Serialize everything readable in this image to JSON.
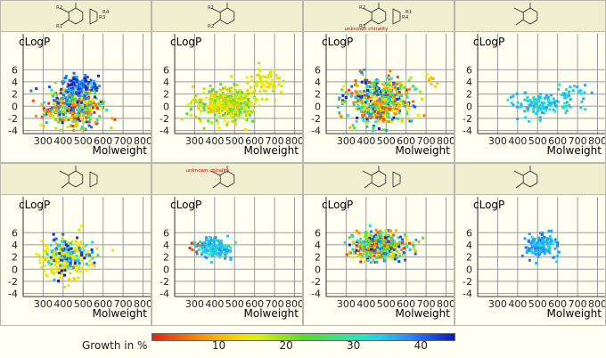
{
  "chart_data": [
    {
      "type": "scatter",
      "xlabel": "Molweight",
      "ylabel": "cLogP",
      "xlim": [
        200,
        820
      ],
      "ylim": [
        -4.5,
        7.5
      ],
      "x_ticks": [
        300,
        400,
        500,
        600,
        700,
        800
      ],
      "y_ticks": [
        -4,
        -2,
        0,
        2,
        4,
        6
      ],
      "structure_labels": [
        "R2",
        "R1",
        "R3",
        "R4"
      ],
      "color_range": [
        0,
        45
      ],
      "clusters": [
        {
          "cx": 450,
          "cy": 0,
          "sx": 70,
          "sy": 1.8,
          "n": 420,
          "cmin": 0,
          "cmax": 45
        },
        {
          "cx": 480,
          "cy": 3.5,
          "sx": 40,
          "sy": 1.0,
          "n": 120,
          "cmin": 35,
          "cmax": 45
        }
      ]
    },
    {
      "type": "scatter",
      "xlabel": "Molweight",
      "ylabel": "cLogP",
      "xlim": [
        200,
        820
      ],
      "ylim": [
        -4.5,
        7.5
      ],
      "x_ticks": [
        300,
        400,
        500,
        600,
        700,
        800
      ],
      "y_ticks": [
        -4,
        -2,
        0,
        2,
        4,
        6
      ],
      "structure_labels": [
        "R1",
        "R2"
      ],
      "color_range": [
        0,
        45
      ],
      "clusters": [
        {
          "cx": 450,
          "cy": 0.3,
          "sx": 75,
          "sy": 1.4,
          "n": 330,
          "cmin": 10,
          "cmax": 25
        },
        {
          "cx": 650,
          "cy": 3.8,
          "sx": 50,
          "sy": 1.2,
          "n": 70,
          "cmin": 12,
          "cmax": 18
        }
      ]
    },
    {
      "type": "scatter",
      "xlabel": "Molweight",
      "ylabel": "cLogP",
      "xlim": [
        200,
        820
      ],
      "ylim": [
        -4.5,
        7.5
      ],
      "x_ticks": [
        300,
        400,
        500,
        600,
        700,
        800
      ],
      "y_ticks": [
        -4,
        -2,
        0,
        2,
        4,
        6
      ],
      "structure_labels": [
        "R2",
        "R3",
        "R4",
        "R1",
        "unknown chirality"
      ],
      "color_range": [
        0,
        45
      ],
      "clusters": [
        {
          "cx": 470,
          "cy": 1.0,
          "sx": 80,
          "sy": 1.9,
          "n": 520,
          "cmin": 0,
          "cmax": 45
        },
        {
          "cx": 720,
          "cy": 4.0,
          "sx": 25,
          "sy": 0.8,
          "n": 8,
          "cmin": 8,
          "cmax": 14
        }
      ]
    },
    {
      "type": "scatter",
      "xlabel": "Molweight",
      "ylabel": "cLogP",
      "xlim": [
        200,
        820
      ],
      "ylim": [
        -4.5,
        7.5
      ],
      "x_ticks": [
        300,
        400,
        500,
        600,
        700,
        800
      ],
      "y_ticks": [
        -4,
        -2,
        0,
        2,
        4,
        6
      ],
      "structure_labels": [],
      "color_range": [
        0,
        45
      ],
      "clusters": [
        {
          "cx": 520,
          "cy": 0.3,
          "sx": 80,
          "sy": 1.0,
          "n": 120,
          "cmin": 31,
          "cmax": 37
        },
        {
          "cx": 680,
          "cy": 2.5,
          "sx": 40,
          "sy": 0.8,
          "n": 25,
          "cmin": 31,
          "cmax": 37
        }
      ]
    },
    {
      "type": "scatter",
      "xlabel": "Molweight",
      "ylabel": "cLogP",
      "xlim": [
        200,
        820
      ],
      "ylim": [
        -4.5,
        7.5
      ],
      "x_ticks": [
        300,
        400,
        500,
        600,
        700,
        800
      ],
      "y_ticks": [
        -4,
        -2,
        0,
        2,
        4,
        6
      ],
      "structure_labels": [],
      "color_range": [
        0,
        45
      ],
      "clusters": [
        {
          "cx": 420,
          "cy": 1.8,
          "sx": 60,
          "sy": 1.6,
          "n": 230,
          "cmin": 12,
          "cmax": 16
        },
        {
          "cx": 430,
          "cy": 2.2,
          "sx": 60,
          "sy": 1.6,
          "n": 90,
          "cmin": 30,
          "cmax": 45
        }
      ]
    },
    {
      "type": "scatter",
      "xlabel": "Molweight",
      "ylabel": "cLogP",
      "xlim": [
        200,
        820
      ],
      "ylim": [
        -4.5,
        7.5
      ],
      "x_ticks": [
        300,
        400,
        500,
        600,
        700,
        800
      ],
      "y_ticks": [
        -4,
        -2,
        0,
        2,
        4,
        6
      ],
      "structure_labels": [
        "unknown chirality"
      ],
      "color_range": [
        0,
        45
      ],
      "clusters": [
        {
          "cx": 400,
          "cy": 3.5,
          "sx": 45,
          "sy": 0.8,
          "n": 150,
          "cmin": 31,
          "cmax": 38
        },
        {
          "cx": 310,
          "cy": 3.6,
          "sx": 15,
          "sy": 0.4,
          "n": 6,
          "cmin": 0,
          "cmax": 8
        }
      ]
    },
    {
      "type": "scatter",
      "xlabel": "Molweight",
      "ylabel": "cLogP",
      "xlim": [
        200,
        820
      ],
      "ylim": [
        -4.5,
        7.5
      ],
      "x_ticks": [
        300,
        400,
        500,
        600,
        700,
        800
      ],
      "y_ticks": [
        -4,
        -2,
        0,
        2,
        4,
        6
      ],
      "structure_labels": [],
      "color_range": [
        0,
        45
      ],
      "clusters": [
        {
          "cx": 470,
          "cy": 3.8,
          "sx": 65,
          "sy": 1.1,
          "n": 480,
          "cmin": 0,
          "cmax": 45
        }
      ]
    },
    {
      "type": "scatter",
      "xlabel": "Molweight",
      "ylabel": "cLogP",
      "xlim": [
        200,
        820
      ],
      "ylim": [
        -4.5,
        7.5
      ],
      "x_ticks": [
        300,
        400,
        500,
        600,
        700,
        800
      ],
      "y_ticks": [
        -4,
        -2,
        0,
        2,
        4,
        6
      ],
      "structure_labels": [],
      "color_range": [
        0,
        45
      ],
      "clusters": [
        {
          "cx": 510,
          "cy": 3.8,
          "sx": 40,
          "sy": 1.0,
          "n": 150,
          "cmin": 32,
          "cmax": 40
        }
      ]
    }
  ],
  "legend": {
    "title": "Growth in %",
    "ticks": [
      "10",
      "20",
      "30",
      "40"
    ],
    "tick_values": [
      10,
      20,
      30,
      40
    ],
    "range": [
      0,
      45
    ]
  }
}
